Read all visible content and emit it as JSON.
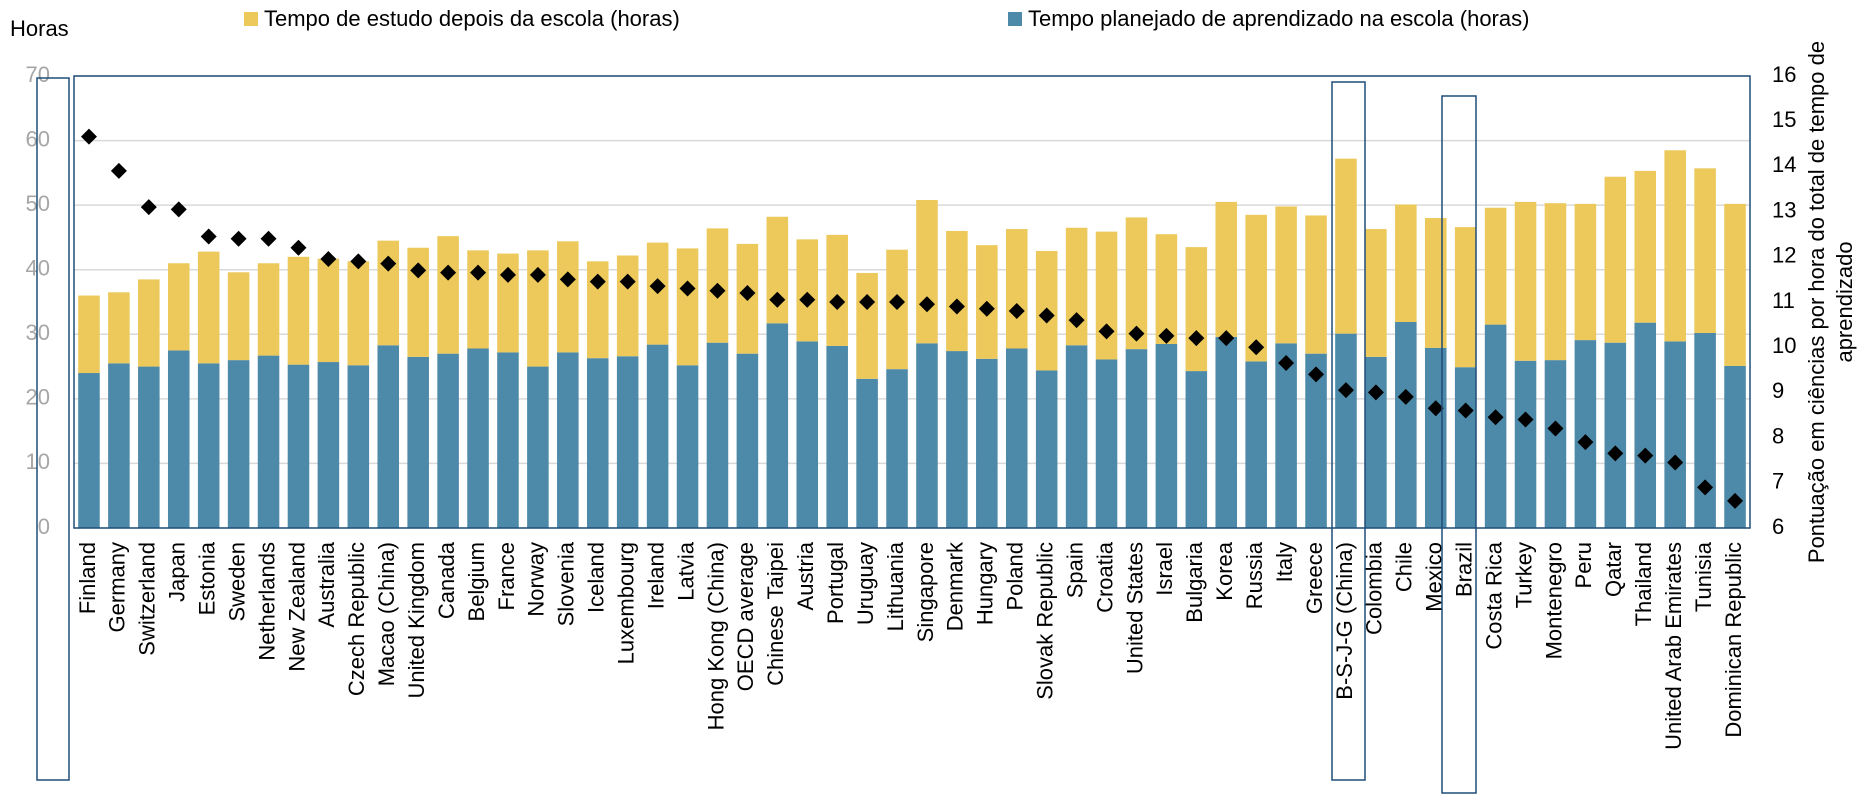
{
  "chart_data": {
    "type": "stacked-bar",
    "ylabel": "Horas",
    "y2label": [
      "Pontuação em ciências por hora do total de tempo de",
      "aprendizado"
    ],
    "categories": [
      "Finland",
      "Germany",
      "Switzerland",
      "Japan",
      "Estonia",
      "Sweden",
      "Netherlands",
      "New Zealand",
      "Australia",
      "Czech Republic",
      "Macao (China)",
      "United Kingdom",
      "Canada",
      "Belgium",
      "France",
      "Norway",
      "Slovenia",
      "Iceland",
      "Luxembourg",
      "Ireland",
      "Latvia",
      "Hong Kong (China)",
      "OECD average",
      "Chinese Taipei",
      "Austria",
      "Portugal",
      "Uruguay",
      "Lithuania",
      "Singapore",
      "Denmark",
      "Hungary",
      "Poland",
      "Slovak Republic",
      "Spain",
      "Croatia",
      "United States",
      "Israel",
      "Bulgaria",
      "Korea",
      "Russia",
      "Italy",
      "Greece",
      "B-S-J-G (China)",
      "Colombia",
      "Chile",
      "Mexico",
      "Brazil",
      "Costa Rica",
      "Turkey",
      "Montenegro",
      "Peru",
      "Qatar",
      "Thailand",
      "United Arab Emirates",
      "Tunisia",
      "Dominican Republic"
    ],
    "series": [
      {
        "name": "Tempo planejado de aprendizado na escola (horas)",
        "color": "#4d89a8",
        "values": [
          24,
          25.5,
          25,
          27.5,
          25.5,
          26,
          26.7,
          25.3,
          25.7,
          25.2,
          28.3,
          26.5,
          27,
          27.8,
          27.2,
          25,
          27.2,
          26.3,
          26.6,
          28.4,
          25.2,
          28.7,
          27,
          31.7,
          28.9,
          28.2,
          23.1,
          24.6,
          28.6,
          27.4,
          26.2,
          27.8,
          24.4,
          28.3,
          26.1,
          27.7,
          28.5,
          24.3,
          29.6,
          25.8,
          28.6,
          27,
          30.1,
          26.5,
          31.9,
          27.9,
          24.9,
          31.5,
          25.9,
          26,
          29.1,
          28.7,
          31.8,
          28.9,
          30.2,
          25.1
        ]
      },
      {
        "name": "Tempo de estudo depois da escola (horas)",
        "color": "#ecc95a",
        "values": [
          12,
          11,
          13.5,
          13.5,
          17.3,
          13.6,
          14.3,
          16.7,
          16,
          16.1,
          16.2,
          16.9,
          18.2,
          15.2,
          15.3,
          18,
          17.2,
          15,
          15.6,
          15.8,
          18.1,
          17.7,
          17,
          16.5,
          15.8,
          17.2,
          16.4,
          18.5,
          22.2,
          18.6,
          17.6,
          18.5,
          18.5,
          18.2,
          19.8,
          20.4,
          17,
          19.2,
          20.9,
          22.7,
          21.2,
          21.4,
          27.1,
          19.8,
          18.2,
          20.1,
          21.7,
          18.1,
          24.6,
          24.3,
          21.1,
          25.7,
          23.5,
          29.6,
          25.5,
          25.1
        ]
      },
      {
        "type": "scatter",
        "axis": "y2",
        "color": "#000000",
        "values": [
          14.66,
          13.9,
          13.1,
          13.05,
          12.45,
          12.4,
          12.4,
          12.2,
          11.95,
          11.9,
          11.85,
          11.7,
          11.65,
          11.65,
          11.6,
          11.6,
          11.5,
          11.45,
          11.45,
          11.35,
          11.3,
          11.25,
          11.2,
          11.05,
          11.05,
          11.0,
          11.0,
          11.0,
          10.95,
          10.9,
          10.85,
          10.8,
          10.7,
          10.6,
          10.35,
          10.3,
          10.25,
          10.2,
          10.2,
          10.0,
          9.65,
          9.4,
          9.05,
          9.0,
          8.9,
          8.65,
          8.6,
          8.45,
          8.4,
          8.2,
          7.9,
          7.65,
          7.6,
          7.45,
          6.9,
          6.6
        ]
      }
    ],
    "legend_order": [
      1,
      0
    ],
    "ylim": [
      0,
      70
    ],
    "yticks": [
      0,
      10,
      20,
      30,
      40,
      50,
      60,
      70
    ],
    "y2lim": [
      6,
      16
    ],
    "y2ticks": [
      6,
      7,
      8,
      9,
      10,
      11,
      12,
      13,
      14,
      15,
      16
    ],
    "grid": true
  }
}
